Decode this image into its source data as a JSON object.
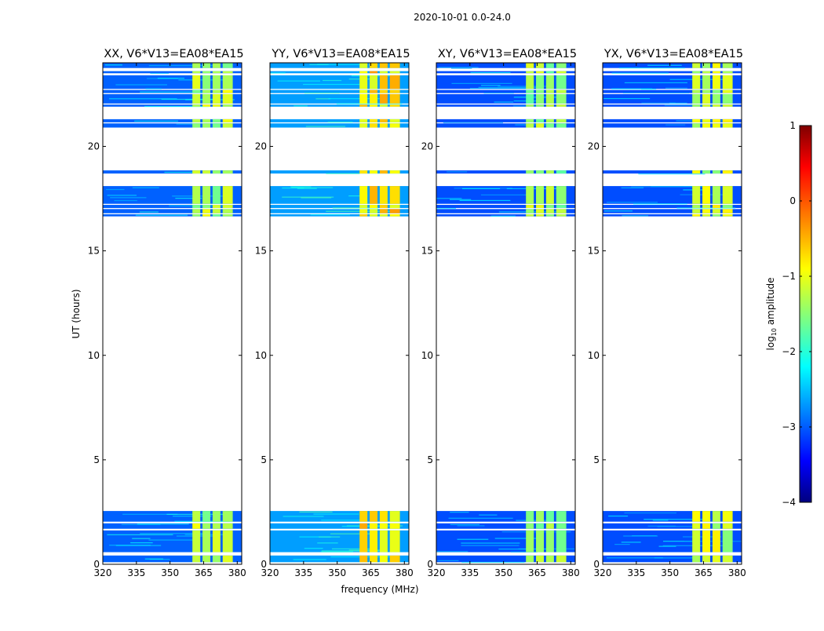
{
  "chart_data": {
    "type": "heatmap",
    "suptitle": "2020-10-01 0.0-24.0",
    "xlabel": "frequency (MHz)",
    "ylabel": "UT (hours)",
    "x_range": [
      320,
      382
    ],
    "y_range": [
      0,
      24
    ],
    "x_ticks": [
      320,
      335,
      350,
      365,
      380
    ],
    "x_tick_labels": [
      "320",
      "335",
      "350",
      "365",
      "380"
    ],
    "y_ticks": [
      0,
      5,
      10,
      15,
      20
    ],
    "y_tick_labels": [
      "0",
      "5",
      "10",
      "15",
      "20"
    ],
    "panels": [
      {
        "title": "XX, V6*V13=EA08*EA15",
        "base_level": -2.9,
        "band_level": -1.3
      },
      {
        "title": "YY, V6*V13=EA08*EA15",
        "base_level": -2.6,
        "band_level": -0.8
      },
      {
        "title": "XY, V6*V13=EA08*EA15",
        "base_level": -3.0,
        "band_level": -1.4
      },
      {
        "title": "YX, V6*V13=EA08*EA15",
        "base_level": -3.0,
        "band_level": -1.2
      }
    ],
    "data_segments_ut": [
      [
        0.1,
        0.42
      ],
      [
        0.58,
        1.62
      ],
      [
        1.7,
        1.96
      ],
      [
        2.04,
        2.55
      ],
      [
        16.65,
        16.75
      ],
      [
        16.8,
        17.0
      ],
      [
        17.05,
        17.2
      ],
      [
        17.25,
        18.1
      ],
      [
        18.7,
        18.85
      ],
      [
        20.9,
        21.1
      ],
      [
        21.15,
        21.3
      ],
      [
        21.9,
        22.0
      ],
      [
        22.05,
        22.5
      ],
      [
        22.55,
        22.7
      ],
      [
        22.75,
        23.4
      ],
      [
        23.5,
        23.6
      ],
      [
        23.75,
        24.0
      ]
    ],
    "bright_band_mhz": [
      360,
      378
    ],
    "bright_subbands_mhz": [
      [
        360,
        363.5
      ],
      [
        364.5,
        368
      ],
      [
        369,
        372.5
      ],
      [
        373.5,
        378
      ]
    ],
    "colorbar": {
      "label": "log10 amplitude",
      "label_main": "log",
      "label_sub": "10",
      "label_rest": " amplitude",
      "range": [
        -4,
        1
      ],
      "ticks": [
        "1",
        "0",
        "−1",
        "−2",
        "−3",
        "−4"
      ],
      "tick_values": [
        1,
        0,
        -1,
        -2,
        -3,
        -4
      ]
    }
  }
}
